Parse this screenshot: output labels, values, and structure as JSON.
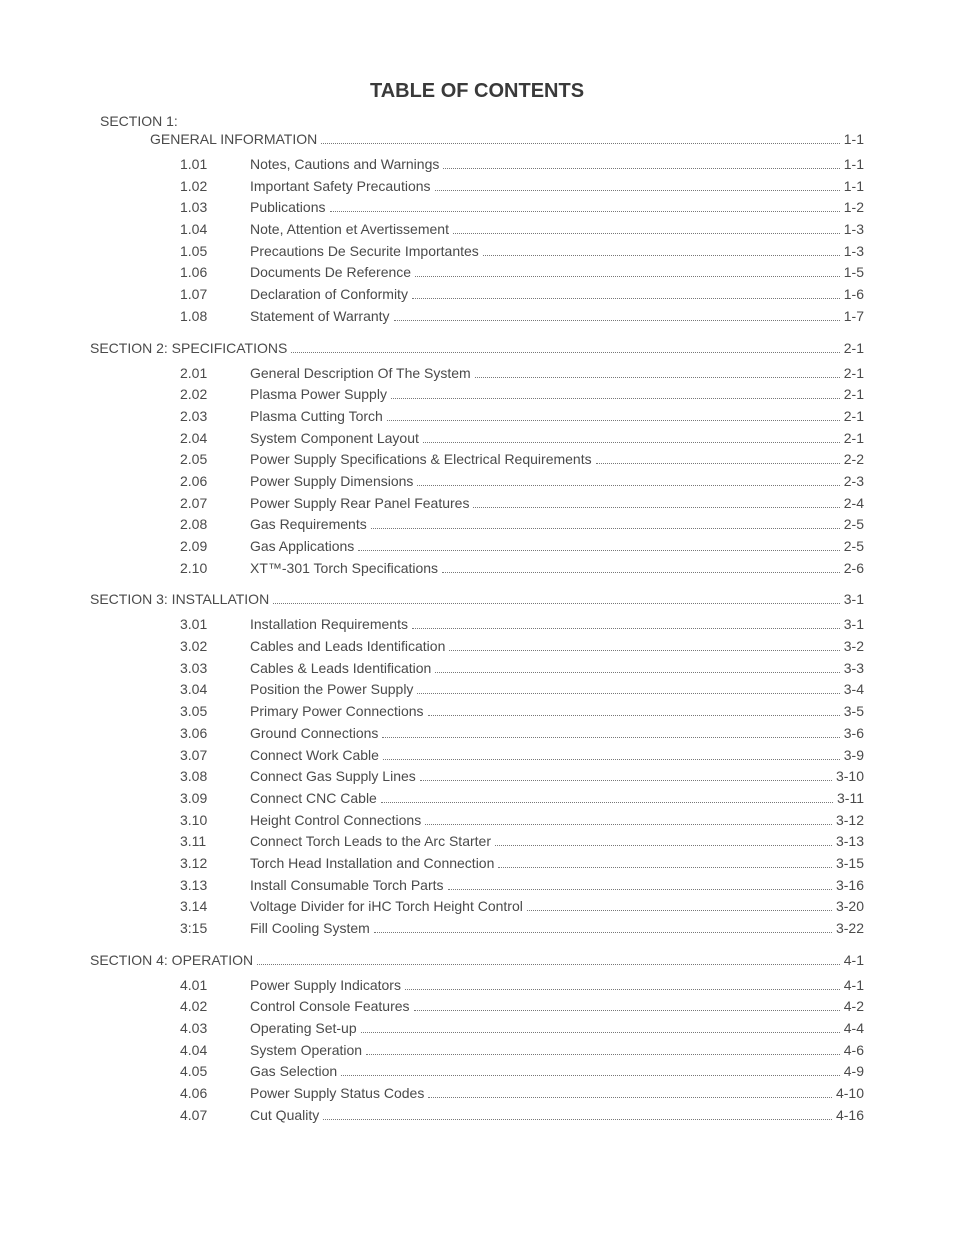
{
  "title": "TABLE OF CONTENTS",
  "colors": {
    "text": "#4a4a4a",
    "title": "#3a3a3a",
    "dots": "#777777",
    "background": "#ffffff"
  },
  "typography": {
    "title_fontsize_pt": 15,
    "body_fontsize_pt": 10.5,
    "font_family": "Arial, Helvetica, sans-serif"
  },
  "sections": [
    {
      "header_prefix": "SECTION 1:",
      "header_title": "GENERAL INFORMATION",
      "header_page": "1-1",
      "stacked": true,
      "items": [
        {
          "num": "1.01",
          "title": "Notes, Cautions and Warnings",
          "page": "1-1"
        },
        {
          "num": "1.02",
          "title": "Important Safety Precautions",
          "page": "1-1"
        },
        {
          "num": "1.03",
          "title": "Publications",
          "page": "1-2"
        },
        {
          "num": "1.04",
          "title": "Note, Attention et Avertissement",
          "page": "1-3"
        },
        {
          "num": "1.05",
          "title": "Precautions De Securite Importantes",
          "page": "1-3"
        },
        {
          "num": "1.06",
          "title": "Documents De Reference",
          "page": "1-5"
        },
        {
          "num": "1.07",
          "title": "Declaration of Conformity",
          "page": "1-6"
        },
        {
          "num": "1.08",
          "title": "Statement of Warranty",
          "page": "1-7"
        }
      ]
    },
    {
      "header_prefix": "SECTION 2: SPECIFICATIONS",
      "header_page": "2-1",
      "stacked": false,
      "items": [
        {
          "num": "2.01",
          "title": "General Description Of The System",
          "page": "2-1"
        },
        {
          "num": "2.02",
          "title": "Plasma Power Supply",
          "page": "2-1"
        },
        {
          "num": "2.03",
          "title": "Plasma Cutting Torch",
          "page": "2-1"
        },
        {
          "num": "2.04",
          "title": "System Component Layout",
          "page": "2-1"
        },
        {
          "num": "2.05",
          "title": "Power Supply Specifications & Electrical Requirements",
          "page": "2-2"
        },
        {
          "num": "2.06",
          "title": "Power Supply Dimensions",
          "page": "2-3"
        },
        {
          "num": "2.07",
          "title": "Power Supply Rear Panel Features",
          "page": "2-4"
        },
        {
          "num": "2.08",
          "title": "Gas Requirements",
          "page": "2-5"
        },
        {
          "num": "2.09",
          "title": "Gas Applications",
          "page": "2-5"
        },
        {
          "num": "2.10",
          "title": "XT™-301 Torch Specifications",
          "page": "2-6"
        }
      ]
    },
    {
      "header_prefix": "SECTION 3: INSTALLATION",
      "header_page": "3-1",
      "stacked": false,
      "items": [
        {
          "num": "3.01",
          "title": "Installation Requirements",
          "page": "3-1"
        },
        {
          "num": "3.02",
          "title": "Cables and Leads Identification",
          "page": "3-2"
        },
        {
          "num": "3.03",
          "title": "Cables & Leads Identification",
          "page": "3-3"
        },
        {
          "num": "3.04",
          "title": "Position the Power Supply",
          "page": "3-4"
        },
        {
          "num": "3.05",
          "title": "Primary Power Connections",
          "page": "3-5"
        },
        {
          "num": "3.06",
          "title": "Ground Connections",
          "page": "3-6"
        },
        {
          "num": "3.07",
          "title": "Connect Work Cable",
          "page": "3-9"
        },
        {
          "num": "3.08",
          "title": "Connect Gas Supply Lines",
          "page": "3-10"
        },
        {
          "num": "3.09",
          "title": "Connect CNC Cable ",
          "page": "3-11"
        },
        {
          "num": "3.10",
          "title": "Height Control Connections",
          "page": "3-12"
        },
        {
          "num": "3.11",
          "title": "Connect Torch Leads to the Arc Starter",
          "page": "3-13"
        },
        {
          "num": "3.12",
          "title": "Torch Head Installation and  Connection",
          "page": "3-15"
        },
        {
          "num": "3.13",
          "title": "Install Consumable Torch Parts",
          "page": "3-16"
        },
        {
          "num": "3.14",
          "title": "Voltage Divider for iHC Torch Height Control",
          "page": "3-20"
        },
        {
          "num": "3:15",
          "title": "Fill Cooling System",
          "page": "3-22"
        }
      ]
    },
    {
      "header_prefix": "SECTION 4: OPERATION",
      "header_page": "4-1",
      "stacked": false,
      "items": [
        {
          "num": "4.01",
          "title": "Power Supply Indicators",
          "page": "4-1"
        },
        {
          "num": "4.02",
          "title": "Control Console Features",
          "page": "4-2"
        },
        {
          "num": "4.03",
          "title": "Operating Set-up",
          "page": "4-4"
        },
        {
          "num": "4.04",
          "title": "System Operation",
          "page": "4-6"
        },
        {
          "num": "4.05",
          "title": "Gas Selection",
          "page": "4-9"
        },
        {
          "num": "4.06",
          "title": "Power Supply Status Codes",
          "page": "4-10"
        },
        {
          "num": "4.07",
          "title": "Cut Quality",
          "page": "4-16"
        }
      ]
    }
  ]
}
